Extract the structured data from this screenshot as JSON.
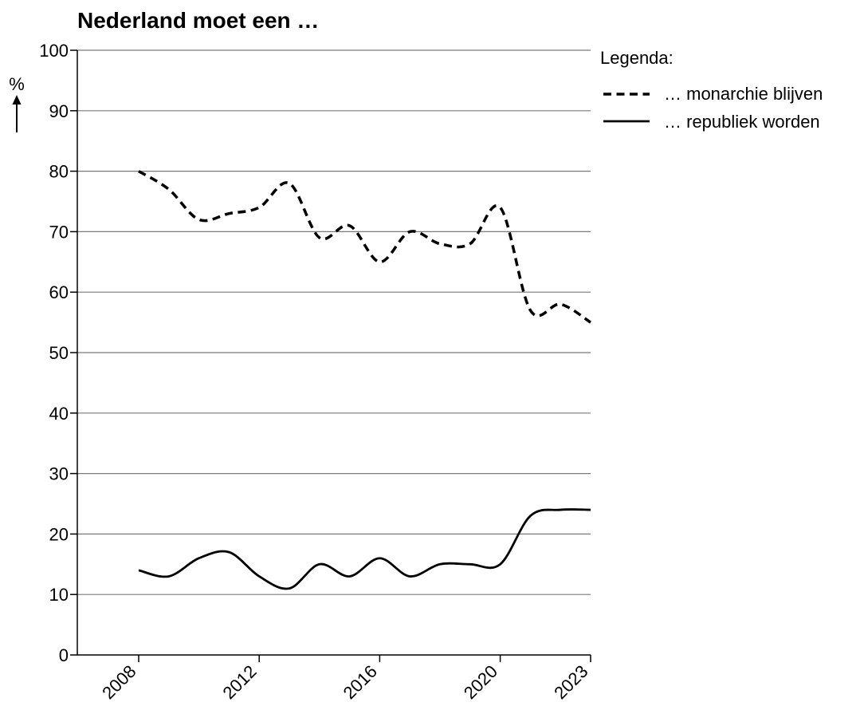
{
  "chart_data": {
    "type": "line",
    "title": "Nederland moet een …",
    "ylabel": "%",
    "xlabel": "",
    "ylim": [
      0,
      100
    ],
    "xlim": [
      2008,
      2023
    ],
    "y_ticks": [
      0,
      10,
      20,
      30,
      40,
      50,
      60,
      70,
      80,
      90,
      100
    ],
    "x_ticks": [
      2008,
      2012,
      2016,
      2020,
      2023
    ],
    "x_tick_labels": [
      "2008",
      "2012",
      "2016",
      "2020",
      "2023"
    ],
    "grid": "horizontal",
    "legend_title": "Legenda:",
    "legend_placement": "top-right",
    "series": [
      {
        "name": "… monarchie blijven",
        "style": "dashed",
        "x": [
          2008,
          2009,
          2010,
          2011,
          2012,
          2013,
          2014,
          2015,
          2016,
          2017,
          2018,
          2019,
          2020,
          2021,
          2022,
          2023
        ],
        "values": [
          80,
          77,
          72,
          73,
          74,
          78,
          69,
          71,
          65,
          70,
          68,
          68,
          74,
          57,
          58,
          55
        ]
      },
      {
        "name": "… republiek worden",
        "style": "solid",
        "x": [
          2008,
          2009,
          2010,
          2011,
          2012,
          2013,
          2014,
          2015,
          2016,
          2017,
          2018,
          2019,
          2020,
          2021,
          2022,
          2023
        ],
        "values": [
          14,
          13,
          16,
          17,
          13,
          11,
          15,
          13,
          16,
          13,
          15,
          15,
          15,
          23,
          24,
          24
        ]
      }
    ]
  }
}
